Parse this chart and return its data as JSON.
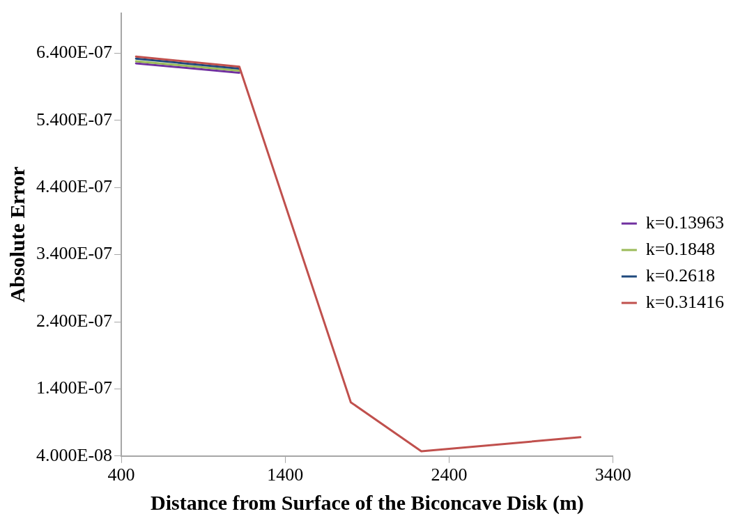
{
  "chart_data": {
    "type": "line",
    "xlabel": "Distance from Surface of the Biconcave Disk (m)",
    "ylabel": "Absolute Error",
    "x": [
      490,
      1120,
      1800,
      2230,
      3200
    ],
    "series": [
      {
        "name": "k=0.13963",
        "color": "#7030a0",
        "values": [
          6.25e-07,
          6.11e-07,
          null,
          null,
          null
        ]
      },
      {
        "name": "k=0.1848",
        "color": "#9bbb59",
        "values": [
          6.28e-07,
          6.14e-07,
          null,
          null,
          null
        ]
      },
      {
        "name": "k=0.2618",
        "color": "#1f497d",
        "values": [
          6.32e-07,
          6.17e-07,
          null,
          null,
          null
        ]
      },
      {
        "name": "k=0.31416",
        "color": "#c0504d",
        "values": [
          6.35e-07,
          6.2e-07,
          1.2e-07,
          4.7e-08,
          6.8e-08
        ]
      }
    ],
    "xlim": [
      400,
      3400
    ],
    "xticks": [
      400,
      1400,
      2400,
      3400
    ],
    "ylim": [
      4e-08,
      7e-07
    ],
    "yticks": [
      {
        "value": 4e-08,
        "label": "4.000E-08"
      },
      {
        "value": 1.4e-07,
        "label": "1.400E-07"
      },
      {
        "value": 2.4e-07,
        "label": "2.400E-07"
      },
      {
        "value": 3.4e-07,
        "label": "3.400E-07"
      },
      {
        "value": 4.4e-07,
        "label": "4.400E-07"
      },
      {
        "value": 5.4e-07,
        "label": "5.400E-07"
      },
      {
        "value": 6.4e-07,
        "label": "6.400E-07"
      }
    ],
    "grid": false,
    "legend": "right",
    "marker": "none",
    "line_style": "solid"
  }
}
